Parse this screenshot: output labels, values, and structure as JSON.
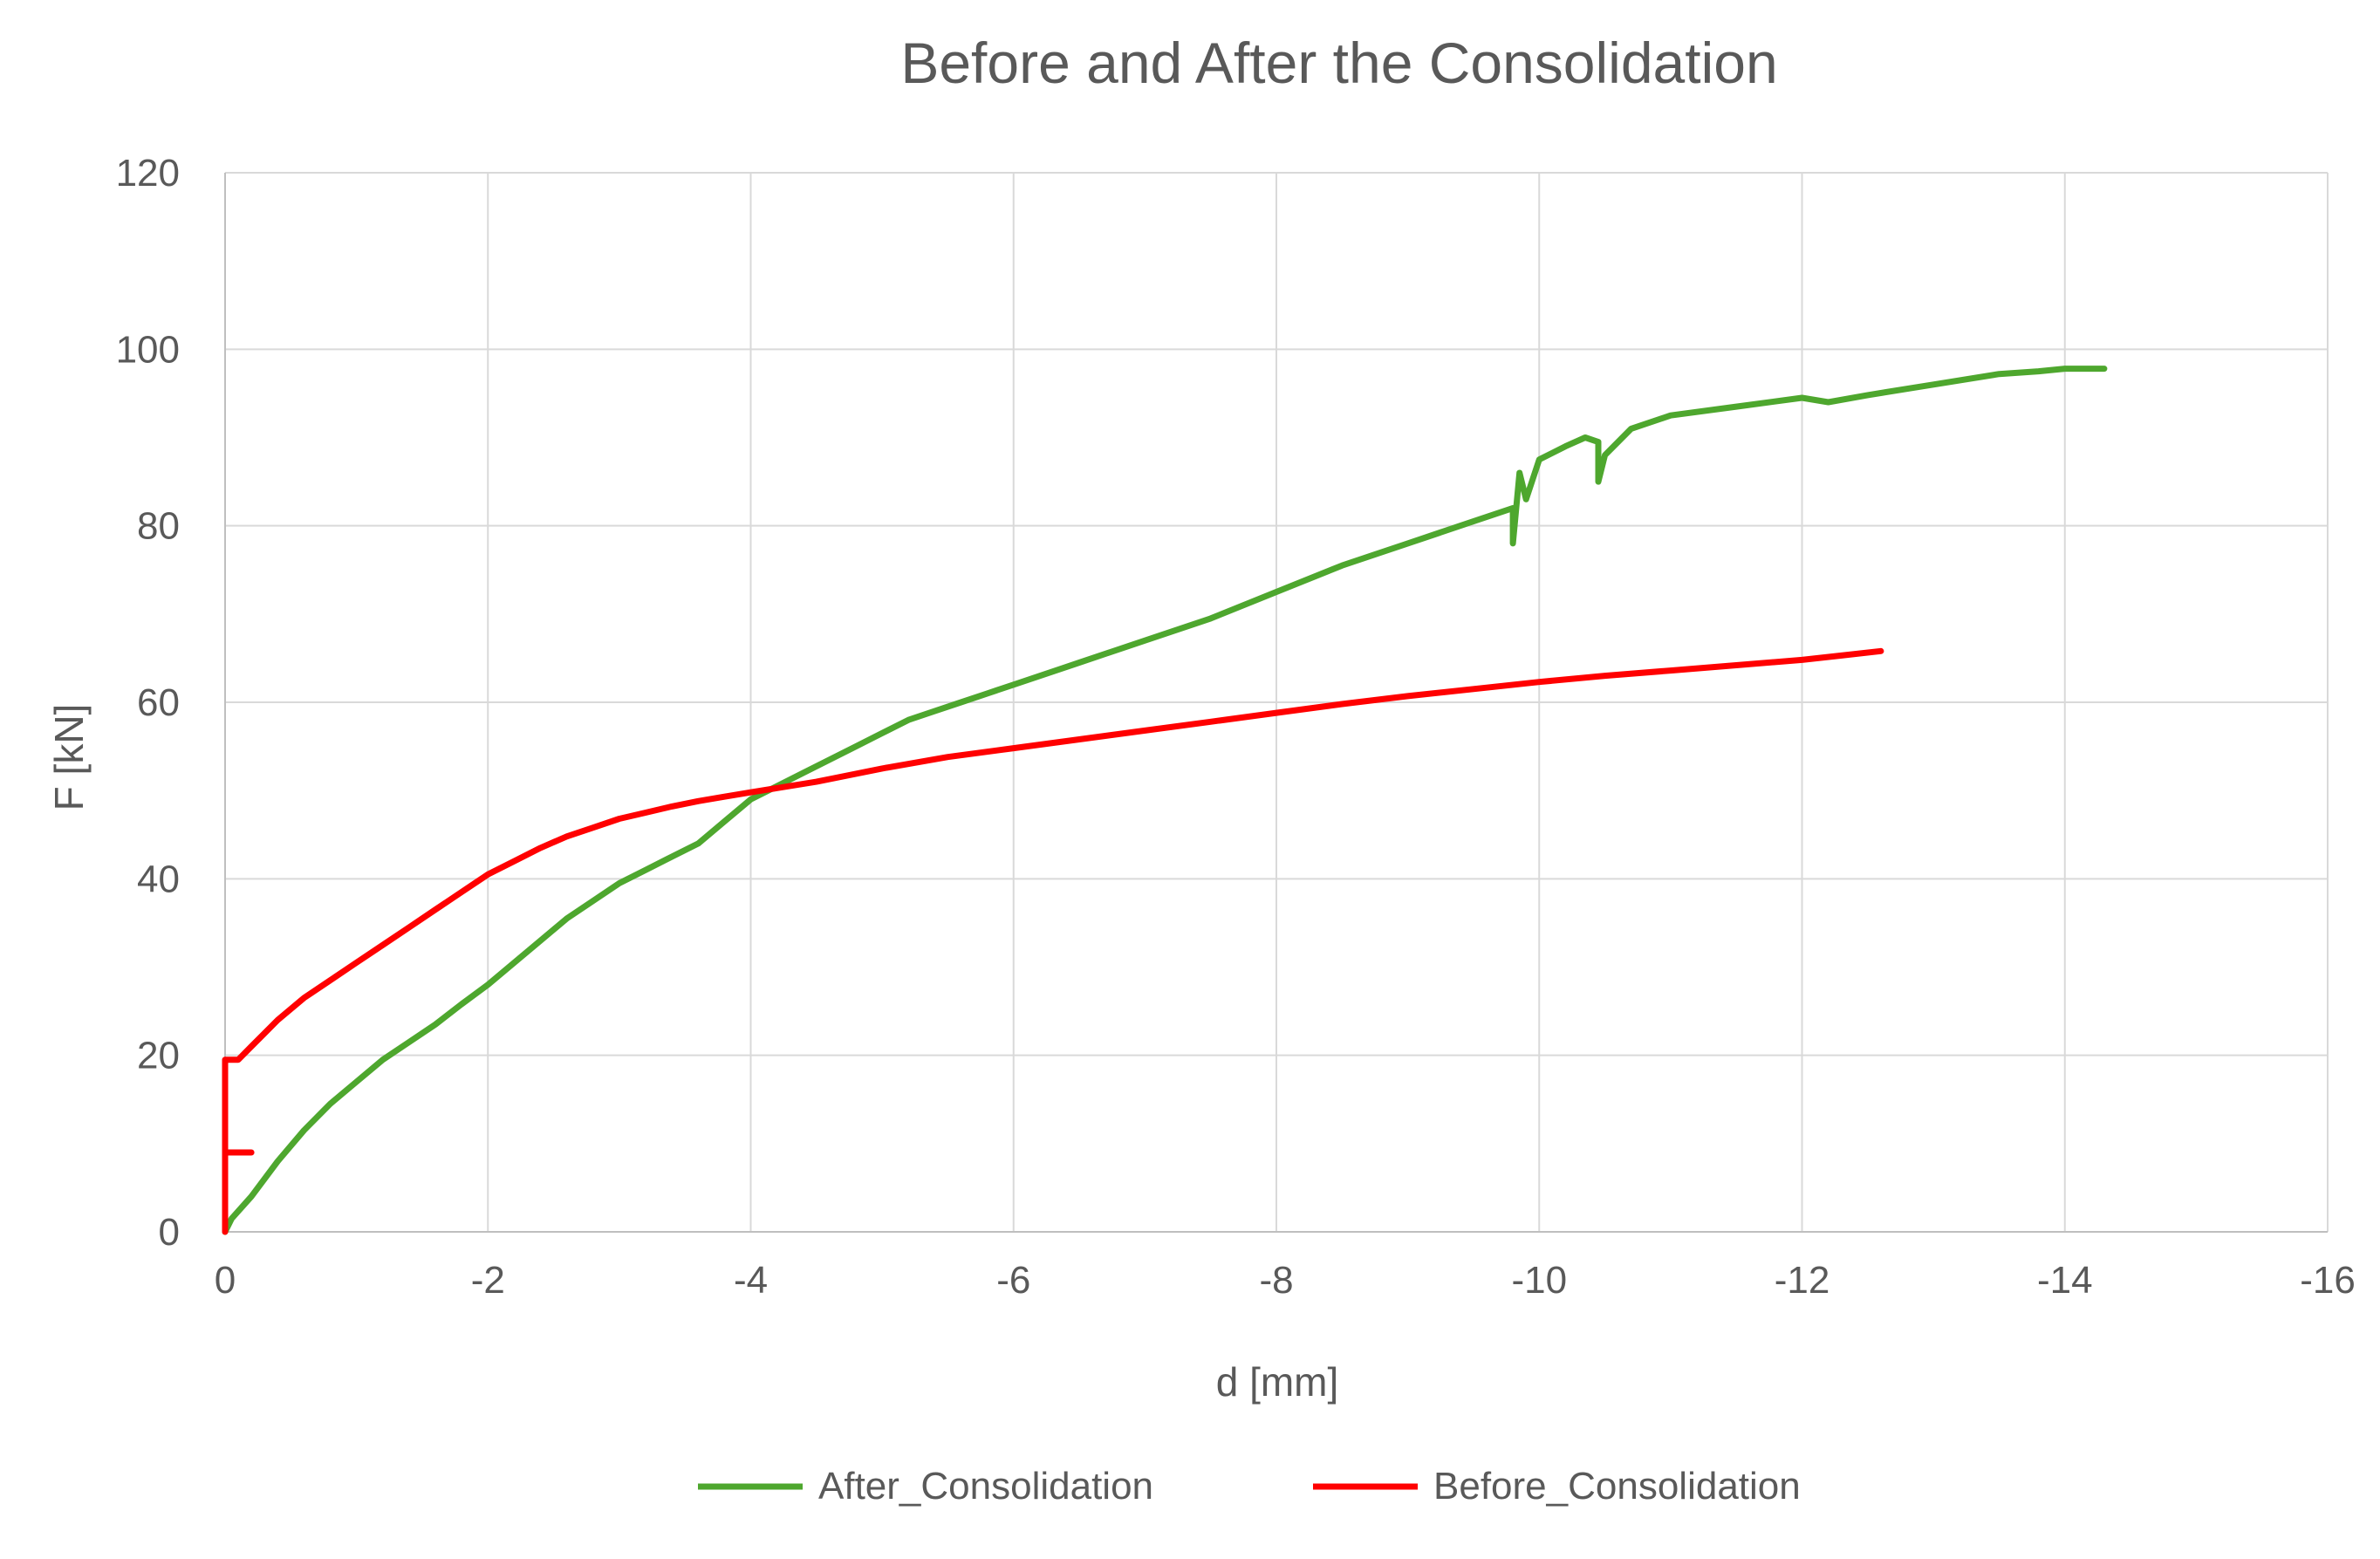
{
  "chart_data": {
    "type": "line",
    "title": "Before and After the Consolidation",
    "xlabel": "d [mm]",
    "ylabel": "F [kN]",
    "xlim": [
      0,
      -16
    ],
    "ylim": [
      0,
      120
    ],
    "x_ticks": [
      0,
      -2,
      -4,
      -6,
      -8,
      -10,
      -12,
      -14,
      -16
    ],
    "y_ticks": [
      0,
      20,
      40,
      60,
      80,
      100,
      120
    ],
    "grid": true,
    "legend_position": "bottom",
    "series": [
      {
        "name": "After_Consolidation",
        "color": "#4ea72e",
        "points": [
          [
            0,
            0
          ],
          [
            -0.05,
            1.5
          ],
          [
            -0.2,
            4
          ],
          [
            -0.4,
            8
          ],
          [
            -0.6,
            11.5
          ],
          [
            -0.8,
            14.5
          ],
          [
            -1.0,
            17
          ],
          [
            -1.2,
            19.5
          ],
          [
            -1.4,
            21.5
          ],
          [
            -1.6,
            23.5
          ],
          [
            -1.8,
            25.8
          ],
          [
            -2.0,
            28
          ],
          [
            -2.2,
            30.5
          ],
          [
            -2.4,
            33
          ],
          [
            -2.6,
            35.5
          ],
          [
            -2.8,
            37.5
          ],
          [
            -3.0,
            39.5
          ],
          [
            -3.2,
            41
          ],
          [
            -3.4,
            42.5
          ],
          [
            -3.6,
            44
          ],
          [
            -3.8,
            46.5
          ],
          [
            -4.0,
            49
          ],
          [
            -4.2,
            50.5
          ],
          [
            -4.4,
            52
          ],
          [
            -4.6,
            53.5
          ],
          [
            -4.8,
            55
          ],
          [
            -5.0,
            56.5
          ],
          [
            -5.2,
            58
          ],
          [
            -5.4,
            59
          ],
          [
            -5.6,
            60
          ],
          [
            -5.8,
            61
          ],
          [
            -6.0,
            62
          ],
          [
            -6.5,
            64.5
          ],
          [
            -7.0,
            67
          ],
          [
            -7.5,
            69.5
          ],
          [
            -8.0,
            72.5
          ],
          [
            -8.5,
            75.5
          ],
          [
            -9.0,
            78
          ],
          [
            -9.5,
            80.5
          ],
          [
            -9.8,
            82
          ],
          [
            -9.8,
            78
          ],
          [
            -9.85,
            86
          ],
          [
            -9.9,
            83
          ],
          [
            -10.0,
            87.5
          ],
          [
            -10.2,
            89
          ],
          [
            -10.35,
            90
          ],
          [
            -10.45,
            89.5
          ],
          [
            -10.45,
            85
          ],
          [
            -10.5,
            88
          ],
          [
            -10.7,
            91
          ],
          [
            -11.0,
            92.5
          ],
          [
            -11.5,
            93.5
          ],
          [
            -12.0,
            94.5
          ],
          [
            -12.2,
            94
          ],
          [
            -12.5,
            94.8
          ],
          [
            -13.0,
            96
          ],
          [
            -13.5,
            97.2
          ],
          [
            -13.8,
            97.5
          ],
          [
            -14.0,
            97.8
          ],
          [
            -14.3,
            97.8
          ]
        ]
      },
      {
        "name": "Before_Consolidation",
        "color": "#ff0000",
        "points": [
          [
            0,
            0
          ],
          [
            0,
            9
          ],
          [
            -0.2,
            9
          ],
          [
            0,
            9
          ],
          [
            0,
            19.5
          ],
          [
            -0.1,
            19.5
          ],
          [
            -0.2,
            21
          ],
          [
            -0.3,
            22.5
          ],
          [
            -0.4,
            24
          ],
          [
            -0.6,
            26.5
          ],
          [
            -0.8,
            28.5
          ],
          [
            -1.0,
            30.5
          ],
          [
            -1.2,
            32.5
          ],
          [
            -1.4,
            34.5
          ],
          [
            -1.6,
            36.5
          ],
          [
            -1.8,
            38.5
          ],
          [
            -2.0,
            40.5
          ],
          [
            -2.2,
            42
          ],
          [
            -2.4,
            43.5
          ],
          [
            -2.6,
            44.8
          ],
          [
            -2.8,
            45.8
          ],
          [
            -3.0,
            46.8
          ],
          [
            -3.2,
            47.5
          ],
          [
            -3.4,
            48.2
          ],
          [
            -3.6,
            48.8
          ],
          [
            -3.8,
            49.3
          ],
          [
            -4.0,
            49.8
          ],
          [
            -4.5,
            51
          ],
          [
            -5.0,
            52.5
          ],
          [
            -5.5,
            53.8
          ],
          [
            -6.0,
            54.8
          ],
          [
            -6.5,
            55.8
          ],
          [
            -7.0,
            56.8
          ],
          [
            -7.5,
            57.8
          ],
          [
            -8.0,
            58.8
          ],
          [
            -8.5,
            59.8
          ],
          [
            -9.0,
            60.7
          ],
          [
            -9.5,
            61.5
          ],
          [
            -10.0,
            62.3
          ],
          [
            -10.5,
            63
          ],
          [
            -11.0,
            63.6
          ],
          [
            -11.5,
            64.2
          ],
          [
            -12.0,
            64.8
          ],
          [
            -12.3,
            65.3
          ],
          [
            -12.6,
            65.8
          ]
        ]
      }
    ]
  }
}
